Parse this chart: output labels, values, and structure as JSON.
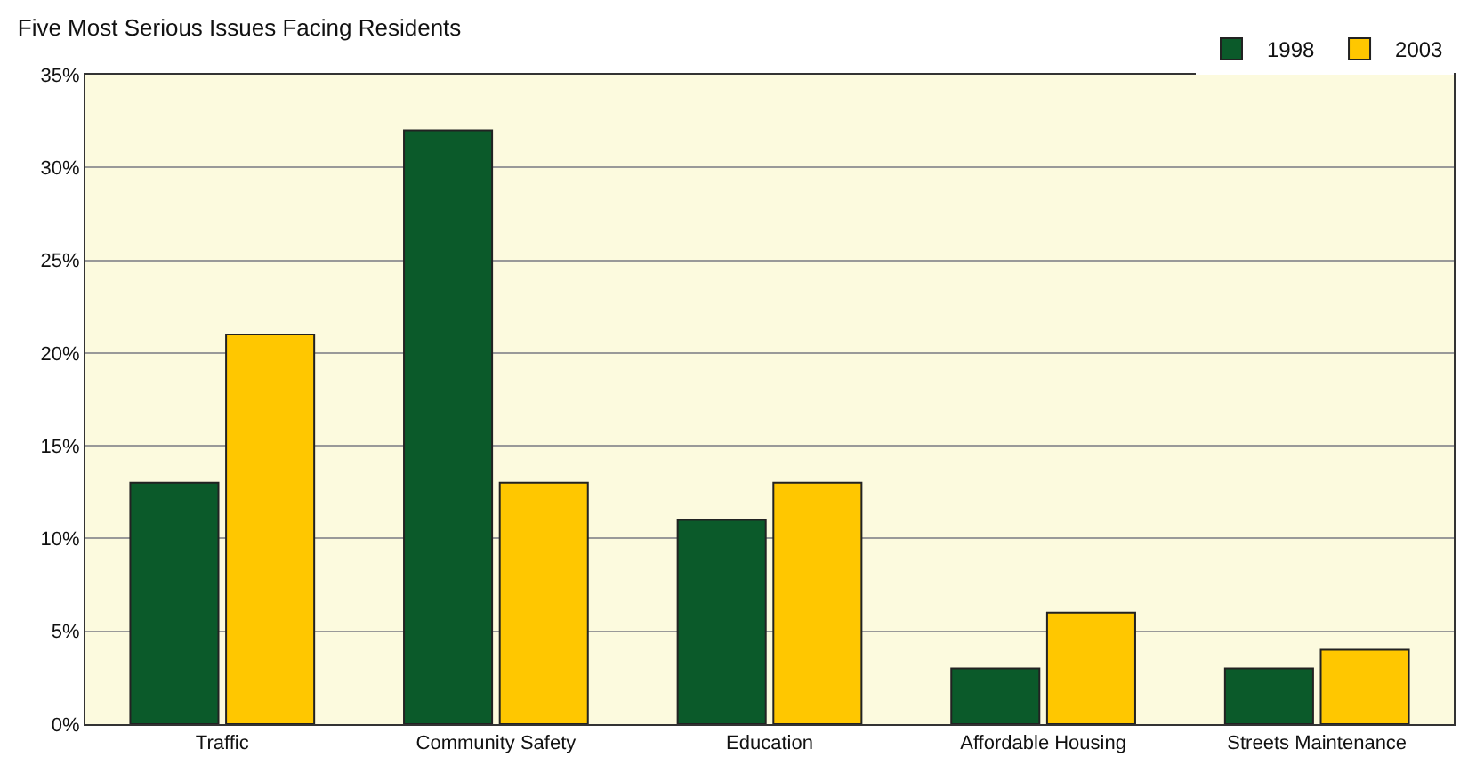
{
  "chart_data": {
    "type": "bar",
    "title": "Five Most Serious Issues Facing Residents",
    "categories": [
      "Traffic",
      "Community Safety",
      "Education",
      "Affordable Housing",
      "Streets Maintenance"
    ],
    "series": [
      {
        "name": "1998",
        "color": "#0b5a2a",
        "values": [
          13,
          32,
          11,
          3,
          3
        ]
      },
      {
        "name": "2003",
        "color": "#ffc700",
        "values": [
          21,
          13,
          13,
          6,
          4
        ]
      }
    ],
    "ylim": [
      0,
      35
    ],
    "yticks": [
      {
        "value": 0,
        "label": "0%"
      },
      {
        "value": 5,
        "label": "5%"
      },
      {
        "value": 10,
        "label": "10%"
      },
      {
        "value": 15,
        "label": "15%"
      },
      {
        "value": 20,
        "label": "20%"
      },
      {
        "value": 25,
        "label": "25%"
      },
      {
        "value": 30,
        "label": "30%"
      },
      {
        "value": 35,
        "label": "35%"
      }
    ],
    "grid": "y",
    "legend": "top right"
  }
}
